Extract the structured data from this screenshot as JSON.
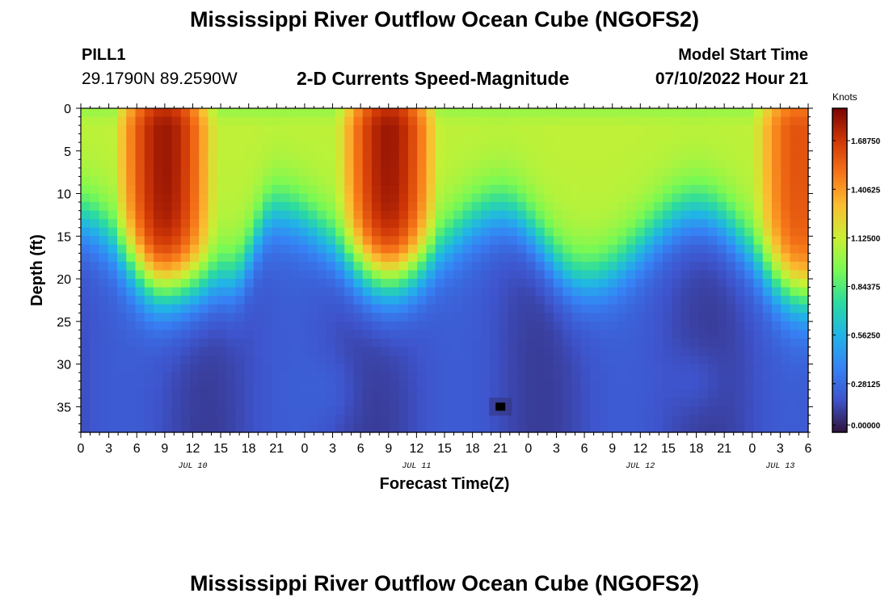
{
  "header": {
    "title": "Mississippi River Outflow Ocean Cube (NGOFS2)",
    "station": "PILL1",
    "coords": "29.1790N  89.2590W",
    "subtitle": "2-D Currents Speed-Magnitude",
    "model_start_label": "Model Start Time",
    "model_start_value": "07/10/2022 Hour 21"
  },
  "footer": {
    "title": "Mississippi River Outflow Ocean Cube (NGOFS2)"
  },
  "chart_data": {
    "type": "heatmap",
    "title": "2-D Currents Speed-Magnitude",
    "xlabel": "Forecast Time(Z)",
    "ylabel": "Depth (ft)",
    "x_range_hours": [
      0,
      78
    ],
    "ylim": [
      0,
      38
    ],
    "y_ticks": [
      0,
      5,
      10,
      15,
      20,
      25,
      30,
      35
    ],
    "x_tick_labels": [
      "0",
      "3",
      "6",
      "9",
      "12",
      "15",
      "18",
      "21",
      "0",
      "3",
      "6",
      "9",
      "12",
      "15",
      "18",
      "21",
      "0",
      "3",
      "6",
      "9",
      "12",
      "15",
      "18",
      "21",
      "0",
      "3",
      "6"
    ],
    "date_labels": [
      {
        "text": "JUL 10",
        "hour": 12
      },
      {
        "text": "JUL 11",
        "hour": 36
      },
      {
        "text": "JUL 12",
        "hour": 60
      },
      {
        "text": "JUL 13",
        "hour": 75
      }
    ],
    "colorbar": {
      "unit": "Knots",
      "min": 0,
      "max": 1.875,
      "ticks": [
        "1.68750",
        "1.40625",
        "1.12500",
        "0.84375",
        "0.56250",
        "0.28125",
        "0.00000"
      ]
    },
    "speed_peaks": [
      {
        "hour": 9,
        "depth_ft": 5,
        "knots": 1.8
      },
      {
        "hour": 33,
        "depth_ft": 4,
        "knots": 1.8
      },
      {
        "hour": 77,
        "depth_ft": 8,
        "knots": 1.6
      }
    ],
    "front_depth_ft": [
      {
        "hour": 0,
        "depth": 13
      },
      {
        "hour": 9,
        "depth": 21
      },
      {
        "hour": 16,
        "depth": 20
      },
      {
        "hour": 21,
        "depth": 12
      },
      {
        "hour": 33,
        "depth": 20
      },
      {
        "hour": 45,
        "depth": 12
      },
      {
        "hour": 54,
        "depth": 20
      },
      {
        "hour": 66,
        "depth": 12
      },
      {
        "hour": 78,
        "depth": 22
      }
    ],
    "missing_point": {
      "hour": 45,
      "depth_ft": 35
    }
  }
}
